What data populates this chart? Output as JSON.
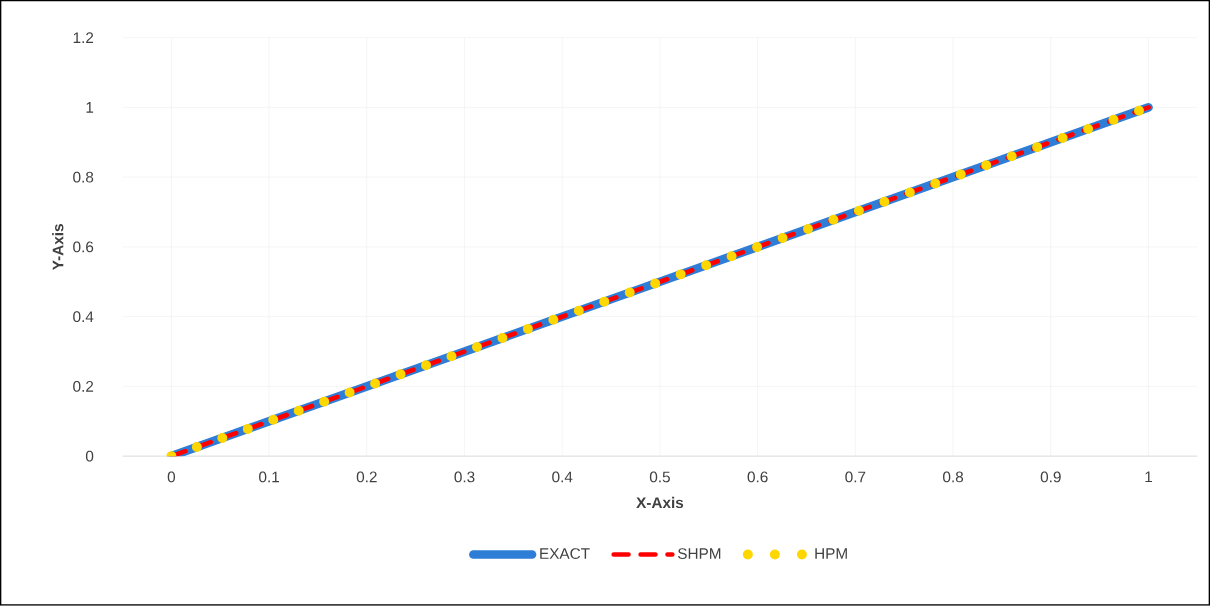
{
  "chart_data": {
    "type": "line",
    "xlabel": "X-Axis",
    "ylabel": "Y-Axis",
    "xlim": [
      -0.05,
      1.05
    ],
    "xticks": [
      0,
      0.1,
      0.2,
      0.3,
      0.4,
      0.5,
      0.6,
      0.7,
      0.8,
      0.9,
      1
    ],
    "ylim": [
      0,
      1.2
    ],
    "yticks": [
      0,
      0.2,
      0.4,
      0.6,
      0.8,
      1,
      1.2
    ],
    "grid": true,
    "legend": "bottom",
    "series": [
      {
        "name": "EXACT",
        "color": "#2e7dd7",
        "line_style": "solid",
        "x": [
          0,
          0.1,
          0.2,
          0.3,
          0.4,
          0.5,
          0.6,
          0.7,
          0.8,
          0.9,
          1
        ],
        "values": [
          0,
          0.1,
          0.2,
          0.3,
          0.4,
          0.5,
          0.6,
          0.7,
          0.8,
          0.9,
          1
        ]
      },
      {
        "name": "SHPM",
        "color": "#ff0000",
        "line_style": "dashed",
        "x": [
          0,
          0.1,
          0.2,
          0.3,
          0.4,
          0.5,
          0.6,
          0.7,
          0.8,
          0.9,
          1
        ],
        "values": [
          0,
          0.1,
          0.2,
          0.3,
          0.4,
          0.5,
          0.6,
          0.7,
          0.8,
          0.9,
          1
        ]
      },
      {
        "name": "HPM",
        "color": "#ffd700",
        "line_style": "dotted",
        "x": [
          0,
          0.1,
          0.2,
          0.3,
          0.4,
          0.5,
          0.6,
          0.7,
          0.8,
          0.9,
          1
        ],
        "values": [
          0,
          0.1,
          0.2,
          0.3,
          0.4,
          0.5,
          0.6,
          0.7,
          0.8,
          0.9,
          1
        ]
      }
    ]
  }
}
